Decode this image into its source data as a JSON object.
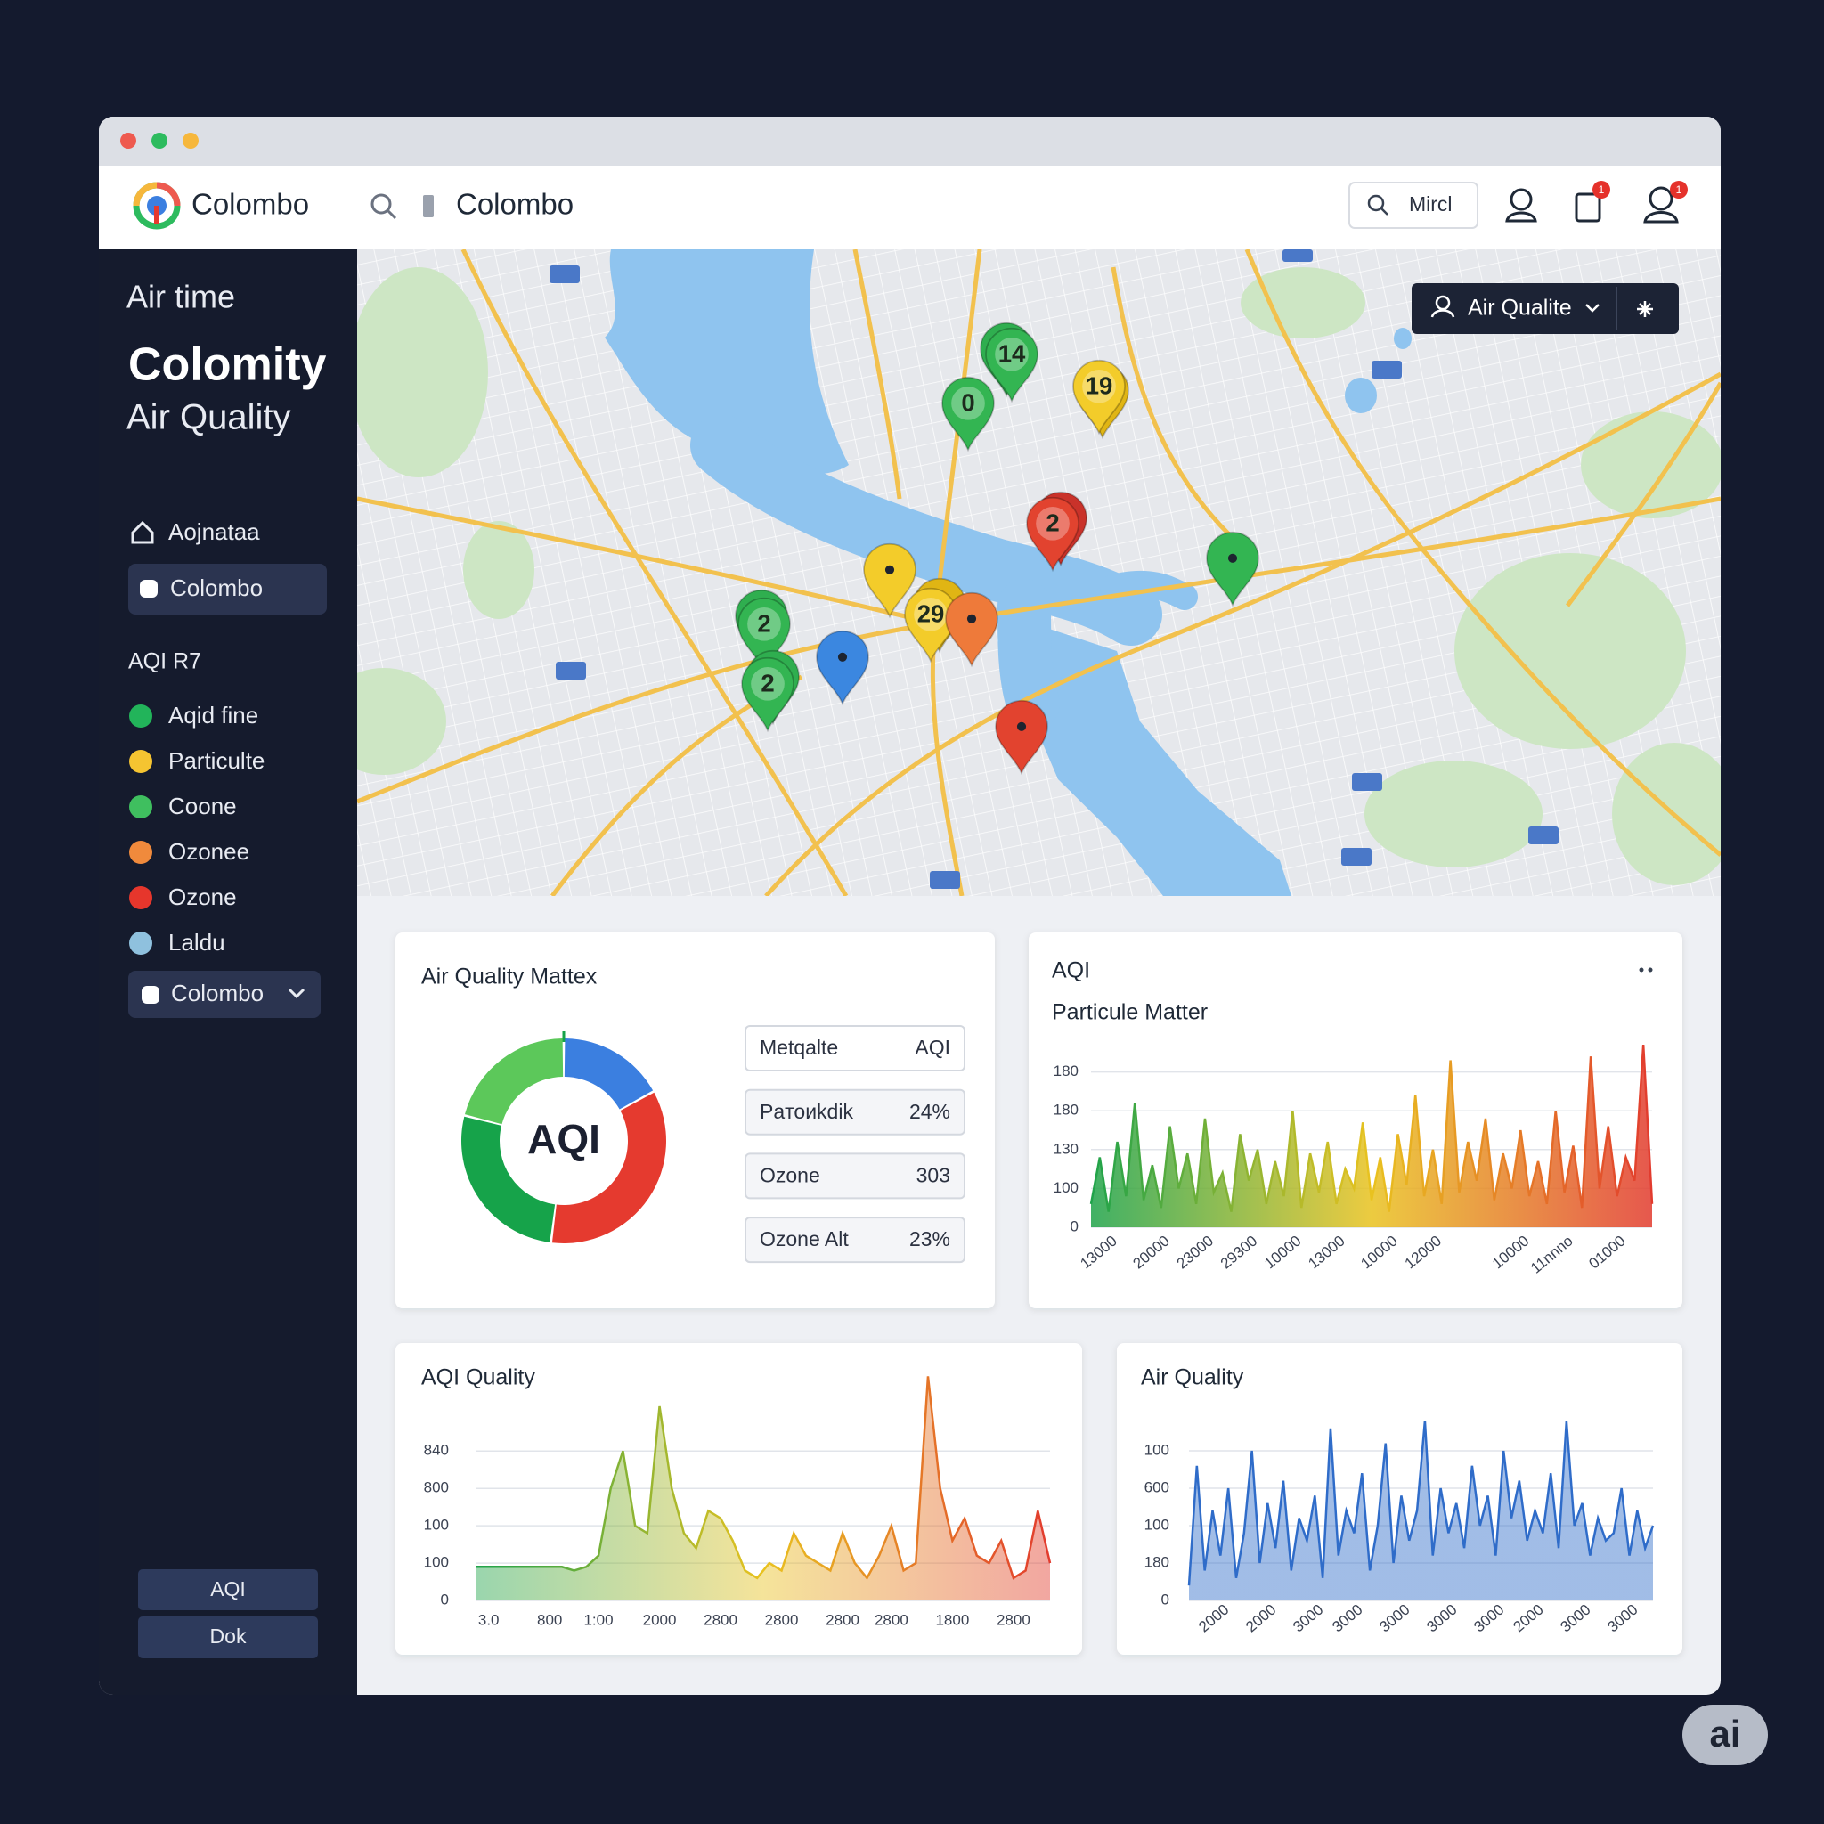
{
  "window": {
    "brand": "Colombo",
    "search": "Colombo",
    "user": "Mircl",
    "badges": [
      "1",
      "1"
    ]
  },
  "sidebar": {
    "kicker": "Air time",
    "title": "Colomity",
    "subtitle": "Air Quality",
    "nav": [
      "Aojnataa",
      "Colombo"
    ],
    "section": "AQI R7",
    "legend": [
      {
        "label": "Aqid fine",
        "color": "#22b45a"
      },
      {
        "label": "Particulte",
        "color": "#f5c431"
      },
      {
        "label": "Coone",
        "color": "#3fbf5f"
      },
      {
        "label": "Ozonee",
        "color": "#f08a3c"
      },
      {
        "label": "Ozone",
        "color": "#e6362c"
      },
      {
        "label": "Laldu",
        "color": "#8fc1de"
      }
    ],
    "select": "Colombo",
    "buttons": [
      "AQI",
      "Dok"
    ]
  },
  "map": {
    "control": "Air Qualite",
    "pins": [
      "14",
      "19",
      "0",
      "2",
      "29",
      "2",
      "2"
    ]
  },
  "matrix_table": [
    [
      "Metqalte",
      "AQI"
    ],
    [
      "Paтоиkdik",
      "24%"
    ],
    [
      "Ozone",
      "303"
    ],
    [
      "Ozone Alt",
      "23%"
    ]
  ],
  "chart_data": [
    {
      "type": "donut",
      "title": "Air Quality Mattex",
      "center_label": "AQI",
      "values": [
        17,
        35,
        27,
        21
      ],
      "colors": [
        "#3b7fe0",
        "#e53a2f",
        "#16a34a",
        "#5cc85a"
      ]
    },
    {
      "type": "area",
      "title": "AQI",
      "subtitle": "Particule Matter",
      "values": [
        30,
        90,
        20,
        110,
        40,
        160,
        35,
        80,
        25,
        130,
        50,
        95,
        30,
        140,
        45,
        70,
        20,
        120,
        60,
        100,
        30,
        85,
        40,
        150,
        25,
        95,
        45,
        110,
        30,
        75,
        50,
        135,
        35,
        90,
        20,
        120,
        55,
        170,
        40,
        100,
        30,
        215,
        45,
        110,
        60,
        140,
        35,
        95,
        50,
        125,
        40,
        85,
        30,
        150,
        45,
        105,
        25,
        220,
        50,
        130,
        40,
        90,
        60,
        235,
        30
      ],
      "colors": [
        "#1fa34a",
        "#e9c21f",
        "#e23b2e"
      ],
      "xlim": [
        0,
        64
      ],
      "xticks": [
        {
          "value": 2,
          "label": "13000"
        },
        {
          "value": 8,
          "label": "20000"
        },
        {
          "value": 13,
          "label": "23000"
        },
        {
          "value": 18,
          "label": "29300"
        },
        {
          "value": 23,
          "label": "10000"
        },
        {
          "value": 28,
          "label": "13000"
        },
        {
          "value": 34,
          "label": "10000"
        },
        {
          "value": 39,
          "label": "12000"
        },
        {
          "value": 49,
          "label": "10000"
        },
        {
          "value": 54,
          "label": "11nnno"
        },
        {
          "value": 60,
          "label": "01000"
        }
      ],
      "ylim": [
        0,
        250
      ],
      "yticks": [
        0,
        {
          "value": 50,
          "label": "100"
        },
        {
          "value": 100,
          "label": "130"
        },
        {
          "value": 150,
          "label": "180"
        },
        {
          "value": 200,
          "label": "180"
        }
      ],
      "grid": true
    },
    {
      "type": "area",
      "title": "AQI Quality",
      "values": [
        45,
        45,
        45,
        45,
        45,
        45,
        45,
        45,
        40,
        45,
        60,
        150,
        200,
        100,
        90,
        260,
        150,
        90,
        70,
        120,
        110,
        80,
        40,
        30,
        50,
        40,
        90,
        60,
        50,
        40,
        90,
        50,
        30,
        60,
        100,
        40,
        50,
        300,
        150,
        80,
        110,
        60,
        50,
        80,
        30,
        40,
        120,
        50
      ],
      "colors": [
        "#1fa34a",
        "#e9c21f",
        "#e23b2e"
      ],
      "xlim": [
        0,
        47
      ],
      "xticks": [
        {
          "value": 1,
          "label": "3.0"
        },
        {
          "value": 6,
          "label": "800"
        },
        {
          "value": 10,
          "label": "1:00"
        },
        {
          "value": 15,
          "label": "2000"
        },
        {
          "value": 20,
          "label": "2800"
        },
        {
          "value": 25,
          "label": "2800"
        },
        {
          "value": 30,
          "label": "2800"
        },
        {
          "value": 34,
          "label": "2800"
        },
        {
          "value": 39,
          "label": "1800"
        },
        {
          "value": 44,
          "label": "2800"
        }
      ],
      "ylim": [
        0,
        310
      ],
      "yticks": [
        0,
        {
          "value": 50,
          "label": "100"
        },
        100,
        {
          "value": 150,
          "label": "800"
        },
        {
          "value": 200,
          "label": "840"
        }
      ],
      "grid": true
    },
    {
      "type": "area",
      "title": "Air Quality",
      "values": [
        20,
        180,
        40,
        120,
        60,
        150,
        30,
        90,
        200,
        50,
        130,
        70,
        160,
        40,
        110,
        80,
        140,
        30,
        230,
        60,
        120,
        90,
        170,
        40,
        100,
        210,
        50,
        140,
        80,
        120,
        240,
        60,
        150,
        90,
        130,
        70,
        180,
        100,
        140,
        60,
        200,
        110,
        160,
        80,
        120,
        90,
        170,
        70,
        240,
        100,
        130,
        60,
        110,
        80,
        90,
        150,
        60,
        120,
        70,
        100
      ],
      "colors": [
        "#2f6cc9"
      ],
      "xlim": [
        0,
        59
      ],
      "xticks": [
        {
          "value": 4,
          "label": "2000"
        },
        {
          "value": 10,
          "label": "2000"
        },
        {
          "value": 16,
          "label": "3000"
        },
        {
          "value": 21,
          "label": "3000"
        },
        {
          "value": 27,
          "label": "3000"
        },
        {
          "value": 33,
          "label": "3000"
        },
        {
          "value": 39,
          "label": "3000"
        },
        {
          "value": 44,
          "label": "2000"
        },
        {
          "value": 50,
          "label": "3000"
        },
        {
          "value": 56,
          "label": "3000"
        }
      ],
      "ylim": [
        0,
        250
      ],
      "yticks": [
        0,
        {
          "value": 50,
          "label": "180"
        },
        100,
        {
          "value": 150,
          "label": "600"
        },
        {
          "value": 200,
          "label": "100"
        }
      ],
      "grid": true
    }
  ],
  "watermark": "ai"
}
